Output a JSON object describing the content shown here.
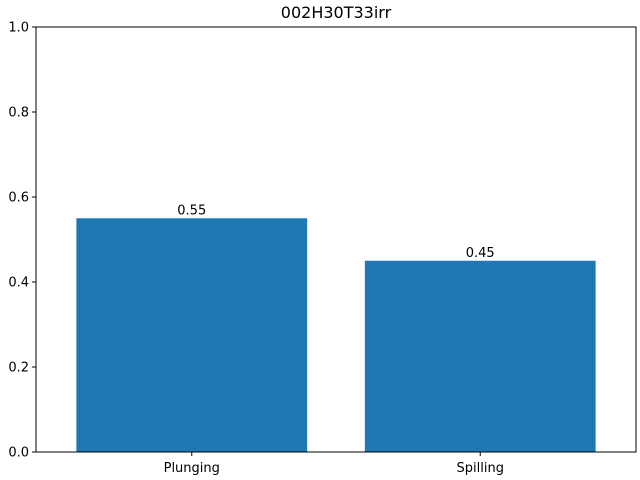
{
  "chart_data": {
    "type": "bar",
    "title": "002H30T33irr",
    "xlabel": "",
    "ylabel": "",
    "categories": [
      "Plunging",
      "Spilling"
    ],
    "values": [
      0.55,
      0.45
    ],
    "data_labels": [
      "0.55",
      "0.45"
    ],
    "ylim": [
      0,
      1.0
    ],
    "yticks": [
      {
        "value": 0.0,
        "label": "0.0"
      },
      {
        "value": 0.2,
        "label": "0.2"
      },
      {
        "value": 0.4,
        "label": "0.4"
      },
      {
        "value": 0.6,
        "label": "0.6"
      },
      {
        "value": 0.8,
        "label": "0.8"
      },
      {
        "value": 1.0,
        "label": "1.0"
      }
    ],
    "bar_color": "#1f77b4",
    "grid": false,
    "legend": "none"
  }
}
